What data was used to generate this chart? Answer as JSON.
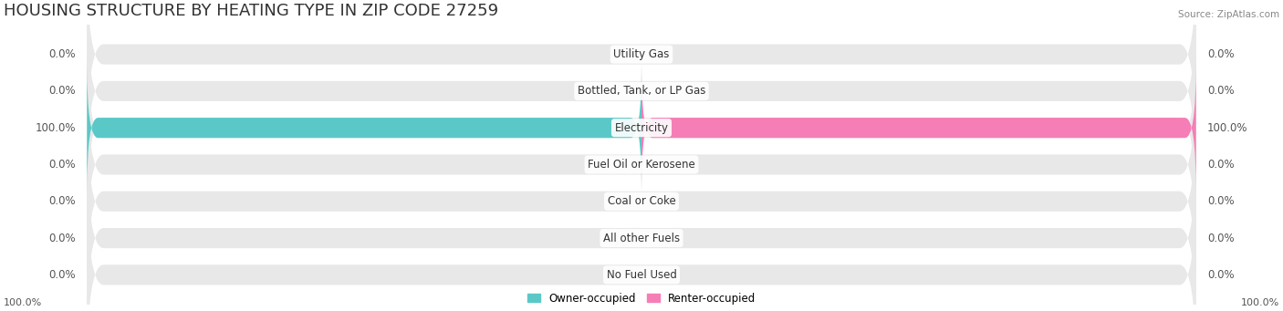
{
  "title": "HOUSING STRUCTURE BY HEATING TYPE IN ZIP CODE 27259",
  "source": "Source: ZipAtlas.com",
  "categories": [
    "Utility Gas",
    "Bottled, Tank, or LP Gas",
    "Electricity",
    "Fuel Oil or Kerosene",
    "Coal or Coke",
    "All other Fuels",
    "No Fuel Used"
  ],
  "owner_values": [
    0.0,
    0.0,
    100.0,
    0.0,
    0.0,
    0.0,
    0.0
  ],
  "renter_values": [
    0.0,
    0.0,
    100.0,
    0.0,
    0.0,
    0.0,
    0.0
  ],
  "owner_color": "#5bc8c8",
  "renter_color": "#f57eb6",
  "background_color": "#f5f5f5",
  "bar_background": "#e8e8e8",
  "title_fontsize": 13,
  "label_fontsize": 8.5,
  "axis_label_fontsize": 8,
  "bar_height": 0.55,
  "max_value": 100.0
}
